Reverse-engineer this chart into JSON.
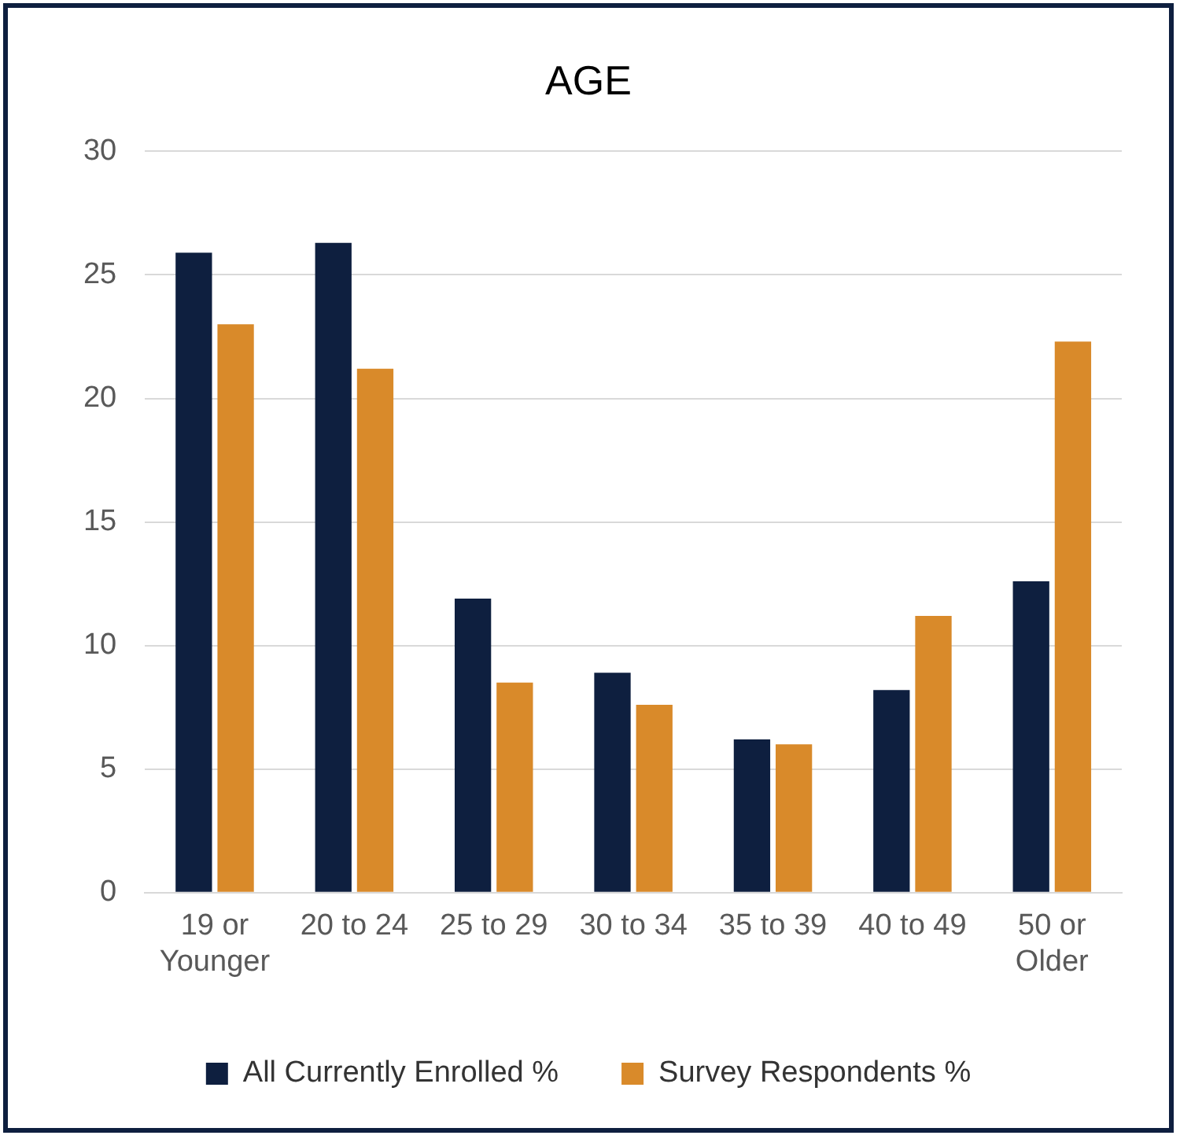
{
  "chart_data": {
    "type": "bar",
    "title": "AGE",
    "categories": [
      "19 or Younger",
      "20 to 24",
      "25 to 29",
      "30 to 34",
      "35 to 39",
      "40 to 49",
      "50 or Older"
    ],
    "series": [
      {
        "name": "All Currently Enrolled %",
        "color": "#0e1f3f",
        "values": [
          25.9,
          26.3,
          11.9,
          8.9,
          6.2,
          8.2,
          12.6
        ]
      },
      {
        "name": "Survey Respondents %",
        "color": "#d98a2a",
        "values": [
          23.0,
          21.2,
          8.5,
          7.6,
          6.0,
          11.2,
          22.3
        ]
      }
    ],
    "ylim": [
      0,
      30
    ],
    "yticks": [
      0,
      5,
      10,
      15,
      20,
      25,
      30
    ],
    "grid": "y",
    "legend": "bottom"
  }
}
